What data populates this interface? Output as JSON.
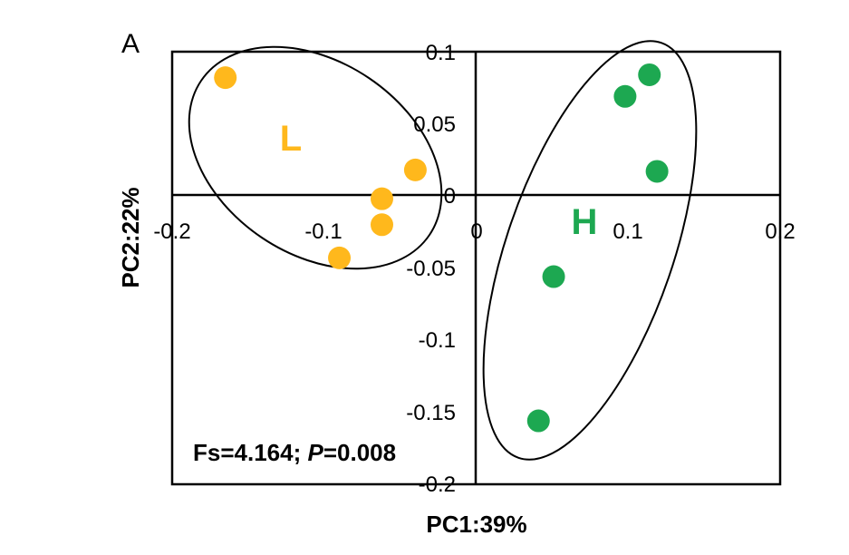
{
  "chart_data": {
    "type": "scatter",
    "panel_label": "A",
    "xlabel": "PC1:39%",
    "ylabel": "PC2:22%",
    "xlim": [
      -0.2,
      0.2
    ],
    "ylim": [
      -0.2,
      0.1
    ],
    "x_ticks": [
      "-0.2",
      "-0.1",
      "0",
      "0.1",
      "0.2"
    ],
    "y_ticks": [
      "0.1",
      "0.05",
      "0",
      "-0.05",
      "-0.1",
      "-0.15",
      "-0.2"
    ],
    "series": [
      {
        "name": "L",
        "color": "#FFB81C",
        "points": [
          {
            "x": -0.165,
            "y": 0.082
          },
          {
            "x": -0.04,
            "y": 0.018
          },
          {
            "x": -0.062,
            "y": -0.002
          },
          {
            "x": -0.062,
            "y": -0.02
          },
          {
            "x": -0.09,
            "y": -0.043
          }
        ]
      },
      {
        "name": "H",
        "color": "#1DA851",
        "points": [
          {
            "x": 0.114,
            "y": 0.084
          },
          {
            "x": 0.098,
            "y": 0.069
          },
          {
            "x": 0.119,
            "y": 0.017
          },
          {
            "x": 0.051,
            "y": -0.056
          },
          {
            "x": 0.041,
            "y": -0.156
          }
        ]
      }
    ],
    "annotation": {
      "prefix": "Fs=4.164; ",
      "italic": "P",
      "suffix": "=0.008"
    },
    "grid": false,
    "legend": "none"
  }
}
